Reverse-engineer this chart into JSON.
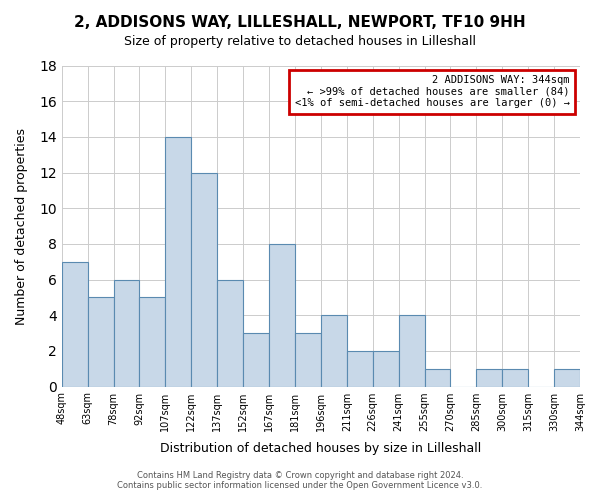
{
  "title": "2, ADDISONS WAY, LILLESHALL, NEWPORT, TF10 9HH",
  "subtitle": "Size of property relative to detached houses in Lilleshall",
  "xlabel": "Distribution of detached houses by size in Lilleshall",
  "ylabel": "Number of detached properties",
  "bar_color": "#c8d8e8",
  "bar_edge_color": "#5a8ab0",
  "bins": [
    "48sqm",
    "63sqm",
    "78sqm",
    "92sqm",
    "107sqm",
    "122sqm",
    "137sqm",
    "152sqm",
    "167sqm",
    "181sqm",
    "196sqm",
    "211sqm",
    "226sqm",
    "241sqm",
    "255sqm",
    "270sqm",
    "285sqm",
    "300sqm",
    "315sqm",
    "330sqm",
    "344sqm"
  ],
  "values": [
    7,
    5,
    6,
    5,
    14,
    12,
    6,
    3,
    8,
    3,
    4,
    2,
    2,
    4,
    1,
    0,
    1,
    1,
    0,
    1
  ],
  "ylim": [
    0,
    18
  ],
  "yticks": [
    0,
    2,
    4,
    6,
    8,
    10,
    12,
    14,
    16,
    18
  ],
  "legend_title": "2 ADDISONS WAY: 344sqm",
  "legend_line1": "← >99% of detached houses are smaller (84)",
  "legend_line2": "<1% of semi-detached houses are larger (0) →",
  "legend_box_color": "#ffffff",
  "legend_box_edge_color": "#cc0000",
  "footer_line1": "Contains HM Land Registry data © Crown copyright and database right 2024.",
  "footer_line2": "Contains public sector information licensed under the Open Government Licence v3.0.",
  "highlight_bar_index": 19,
  "highlight_bar_color": "#c8d8e8"
}
